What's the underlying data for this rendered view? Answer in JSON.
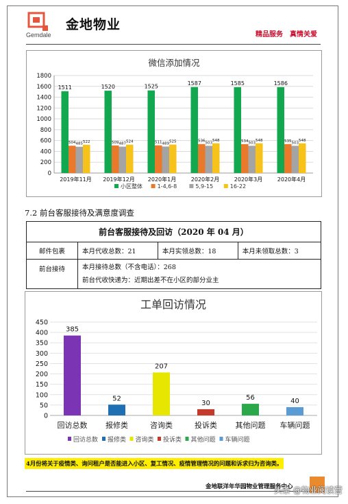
{
  "header": {
    "company": "金地物业",
    "logo_text": "Gemdale",
    "slogan": "精品服务　真情关爱"
  },
  "chart_wechat": {
    "type": "bar",
    "title": "微信添加情况",
    "categories": [
      "2019年11月",
      "2019年12月",
      "2020年1月",
      "2020年2月",
      "2020年3月",
      "2020年4月"
    ],
    "series": [
      {
        "name": "小区整体",
        "color": "#12a84f",
        "values": [
          1511,
          1520,
          1525,
          1587,
          1585,
          1586
        ]
      },
      {
        "name": "1-4,6-8",
        "color": "#e97a2c",
        "values": [
          504,
          509,
          511,
          536,
          534,
          535
        ]
      },
      {
        "name": "5,9-15",
        "color": "#a4a4a4",
        "values": [
          485,
          487,
          489,
          503,
          503,
          503
        ]
      },
      {
        "name": "16-22",
        "color": "#f7c21a",
        "values": [
          522,
          524,
          525,
          548,
          548,
          548
        ]
      }
    ],
    "ylim": [
      0,
      1800
    ],
    "yticks": [
      0,
      200,
      400,
      600,
      800,
      1000,
      1200,
      1400,
      1600,
      1800
    ],
    "grid": true,
    "legend": "bottom"
  },
  "section": {
    "heading": "7.2 前台客服接待及满意度调查"
  },
  "table": {
    "title": "前台客服接待及回访（2020 年 04 月）",
    "row1_label": "邮件包裹",
    "row1_c1": "本月代收总数：21",
    "row1_c2": "本月实领总数：18",
    "row1_c3": "本月未领取总数：3",
    "row2_label": "前台接待",
    "row2_line1": "本月接待总数（不含电话）：268",
    "row2_line2": "前台代收快递为：近期出差不在小区的部分业主"
  },
  "chart_workorder": {
    "type": "bar",
    "title": "工单回访情况",
    "categories": [
      "回访总数",
      "报修类",
      "咨询类",
      "投诉类",
      "其他问题",
      "车辆问题"
    ],
    "values": [
      385,
      52,
      207,
      30,
      56,
      40
    ],
    "colors": [
      "#7b35b4",
      "#1f6fb5",
      "#e7e600",
      "#c43a2a",
      "#2aa84a",
      "#5b9bd5"
    ],
    "ylim": [
      0,
      450
    ],
    "yticks": [
      0,
      50,
      100,
      150,
      200,
      250,
      300,
      350,
      400,
      450
    ],
    "legend": "bottom"
  },
  "note": "4月份将关于疫情类、询问租户是否能进入小区、复工情况、疫情管理情况的问题和诉求归为咨询类。",
  "footer": {
    "org": "金地联洋年华园物业管理服务中心",
    "watermark": "头条 @物业阅读营"
  }
}
